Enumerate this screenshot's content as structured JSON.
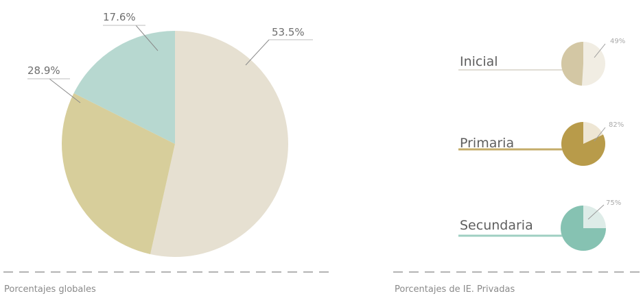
{
  "chart_data": [
    {
      "type": "pie",
      "categories": [
        "",
        "",
        ""
      ],
      "values": [
        53.5,
        28.9,
        17.6
      ],
      "labels": [
        "53.5%",
        "28.9%",
        "17.6%"
      ],
      "colors": [
        "#e6e0d1",
        "#d7ce9b",
        "#b7d8d0"
      ],
      "caption": "Porcentajes globales"
    },
    {
      "type": "pie",
      "caption": "Porcentajes de IE. Privadas",
      "items": [
        {
          "name": "Inicial",
          "value": 49,
          "label": "49%",
          "color": "#d3c7a4",
          "rest_color": "#f1ede3"
        },
        {
          "name": "Primaria",
          "value": 82,
          "label": "82%",
          "color": "#b89b4a",
          "rest_color": "#eee6d4"
        },
        {
          "name": "Secundaria",
          "value": 75,
          "label": "75%",
          "color": "#86c2b2",
          "rest_color": "#deece8"
        }
      ]
    }
  ]
}
